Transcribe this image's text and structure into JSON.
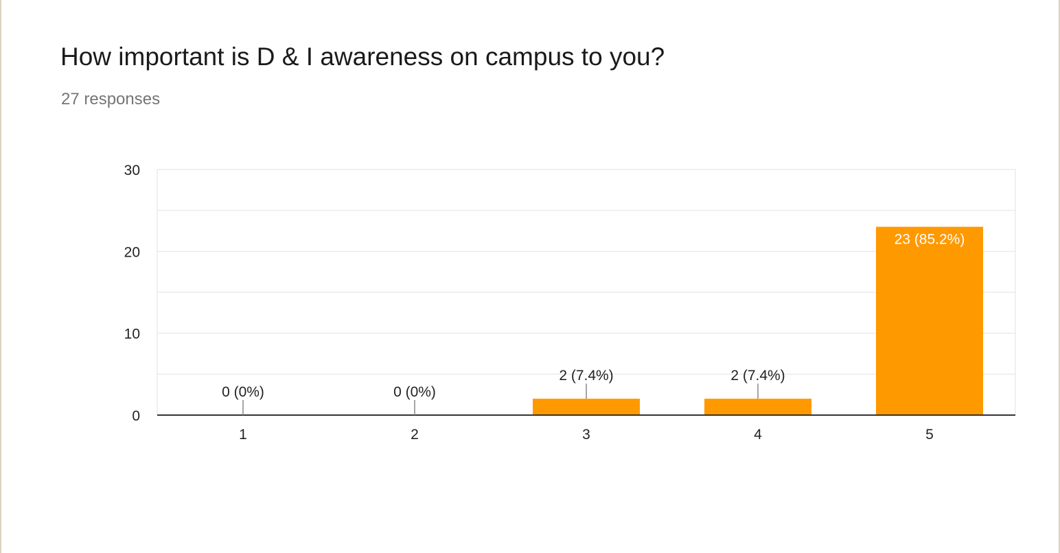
{
  "question": {
    "title": "How important is D & I awareness on campus to you?",
    "responses": "27 responses"
  },
  "colors": {
    "bar": "#ff9900",
    "grid": "#ebebeb",
    "axis": "#333333",
    "label": "#222222",
    "inside_label": "#ffffff"
  },
  "chart_data": {
    "type": "bar",
    "categories": [
      "1",
      "2",
      "3",
      "4",
      "5"
    ],
    "values": [
      0,
      0,
      2,
      2,
      23
    ],
    "data_labels": [
      "0 (0%)",
      "0 (0%)",
      "2 (7.4%)",
      "2 (7.4%)",
      "23 (85.2%)"
    ],
    "title": "",
    "xlabel": "",
    "ylabel": "",
    "ylim": [
      0,
      30
    ],
    "yticks": [
      "0",
      "10",
      "20",
      "30"
    ],
    "grid": true,
    "legend": "none"
  }
}
